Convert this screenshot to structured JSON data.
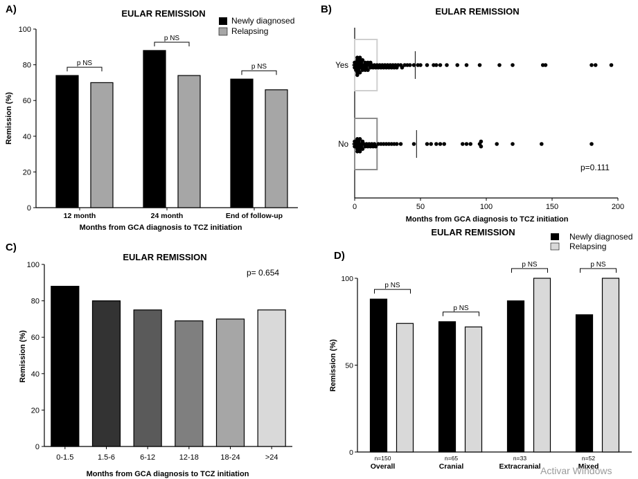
{
  "watermark": "Activar Windows",
  "chart_data": [
    {
      "panel": "A)",
      "type": "bar",
      "title": "EULAR REMISSION",
      "xlabel": "Months from GCA diagnosis to TCZ initiation",
      "ylabel": "Remission (%)",
      "ylim": [
        0,
        100
      ],
      "yticks": [
        0,
        20,
        40,
        60,
        80,
        100
      ],
      "categories": [
        "12 month",
        "24 month",
        "End of follow-up"
      ],
      "series": [
        {
          "name": "Newly diagnosed",
          "color": "#000000",
          "values": [
            74,
            88,
            72
          ]
        },
        {
          "name": "Relapsing",
          "color": "#a6a6a6",
          "values": [
            70,
            74,
            66
          ]
        }
      ],
      "annotations": [
        "p NS",
        "p NS",
        "p NS"
      ],
      "legend": "top-right"
    },
    {
      "panel": "B)",
      "type": "scatter",
      "title": "EULAR REMISSION",
      "xlabel": "Months from GCA diagnosis to TCZ initiation",
      "xlim": [
        0,
        200
      ],
      "xticks": [
        0,
        50,
        100,
        150,
        200
      ],
      "groups": [
        {
          "label": "Yes",
          "median": 46,
          "box": [
            0,
            17
          ],
          "points": [
            0,
            0,
            0,
            1,
            1,
            1,
            1,
            2,
            2,
            2,
            2,
            3,
            3,
            3,
            3,
            4,
            4,
            4,
            5,
            5,
            5,
            6,
            6,
            7,
            7,
            8,
            8,
            9,
            9,
            10,
            10,
            11,
            12,
            12,
            13,
            14,
            15,
            16,
            17,
            18,
            19,
            20,
            21,
            22,
            23,
            24,
            25,
            26,
            27,
            28,
            29,
            30,
            31,
            32,
            33,
            35,
            36,
            38,
            40,
            42,
            45,
            48,
            50,
            55,
            60,
            62,
            65,
            70,
            78,
            85,
            95,
            110,
            120,
            143,
            145,
            180,
            183,
            195
          ]
        },
        {
          "label": "No",
          "median": 47,
          "box": [
            0,
            17
          ],
          "points": [
            0,
            0,
            0,
            1,
            1,
            1,
            2,
            2,
            2,
            3,
            3,
            3,
            4,
            4,
            4,
            5,
            5,
            6,
            6,
            7,
            8,
            9,
            10,
            11,
            12,
            13,
            14,
            15,
            16,
            18,
            20,
            22,
            24,
            26,
            28,
            30,
            32,
            35,
            45,
            55,
            58,
            62,
            65,
            68,
            82,
            85,
            88,
            95,
            96,
            96,
            108,
            120,
            142,
            180
          ]
        }
      ],
      "annotation": "p=0.111"
    },
    {
      "panel": "C)",
      "type": "bar",
      "title": "EULAR REMISSION",
      "xlabel": "Months from GCA diagnosis to TCZ initiation",
      "ylabel": "Remission (%)",
      "ylim": [
        0,
        100
      ],
      "yticks": [
        0,
        20,
        40,
        60,
        80,
        100
      ],
      "categories": [
        "0-1.5",
        "1.5-6",
        "6-12",
        "12-18",
        "18-24",
        ">24"
      ],
      "values": [
        88,
        80,
        75,
        69,
        70,
        75
      ],
      "colors": [
        "#000000",
        "#333333",
        "#5a5a5a",
        "#7f7f7f",
        "#a6a6a6",
        "#d9d9d9"
      ],
      "annotation": "p= 0.654"
    },
    {
      "panel": "D)",
      "type": "bar",
      "title": "EULAR REMISSION",
      "ylabel": "Remission (%)",
      "ylim": [
        0,
        100
      ],
      "yticks": [
        0,
        50,
        100
      ],
      "categories": [
        "Overall",
        "Cranial",
        "Extracranial",
        "Mixed"
      ],
      "counts": [
        "n=150",
        "n=65",
        "n=33",
        "n=52"
      ],
      "series": [
        {
          "name": "Newly diagnosed",
          "color": "#000000",
          "values": [
            88,
            75,
            87,
            79
          ]
        },
        {
          "name": "Relapsing",
          "color": "#d9d9d9",
          "values": [
            74,
            72,
            100,
            100
          ]
        }
      ],
      "annotations": [
        "p NS",
        "p NS",
        "p NS",
        "p NS"
      ],
      "legend": "top-right"
    }
  ]
}
